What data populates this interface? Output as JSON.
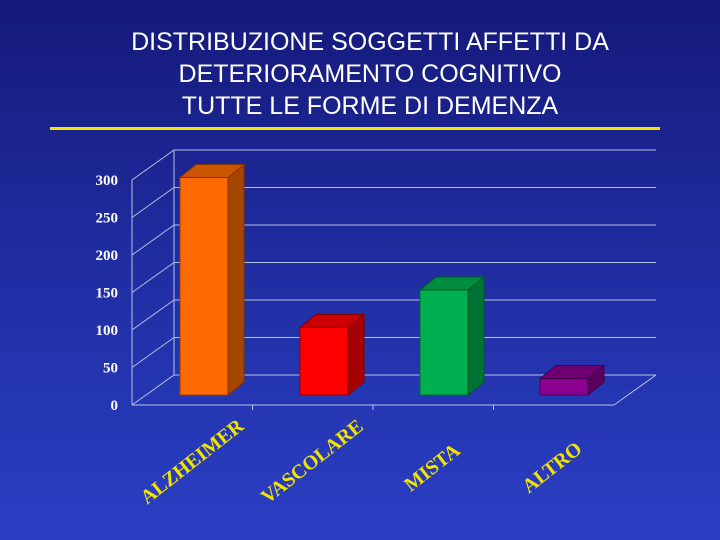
{
  "title": {
    "line1": "DISTRIBUZIONE SOGGETTI AFFETTI DA",
    "line2": "DETERIORAMENTO COGNITIVO",
    "line3": "TUTTE LE FORME DI DEMENZA"
  },
  "colors": {
    "rule": "#f2e300",
    "category_label": "#f2e300",
    "tick_label": "#ffffff"
  },
  "chart_data": {
    "type": "bar",
    "title": "DISTRIBUZIONE SOGGETTI AFFETTI DA DETERIORAMENTO COGNITIVO TUTTE LE FORME DI DEMENZA",
    "categories": [
      "ALZHEIMER",
      "VASCOLARE",
      "MISTA",
      "ALTRO"
    ],
    "values": [
      290,
      90,
      140,
      22
    ],
    "colors": [
      "#ff6a00",
      "#ff0000",
      "#00b050",
      "#8a0090"
    ],
    "ylim": [
      0,
      300
    ],
    "yticks": [
      "0",
      "50",
      "100",
      "150",
      "200",
      "250",
      "300"
    ],
    "grid": true,
    "legend": "none",
    "style": "3d"
  }
}
